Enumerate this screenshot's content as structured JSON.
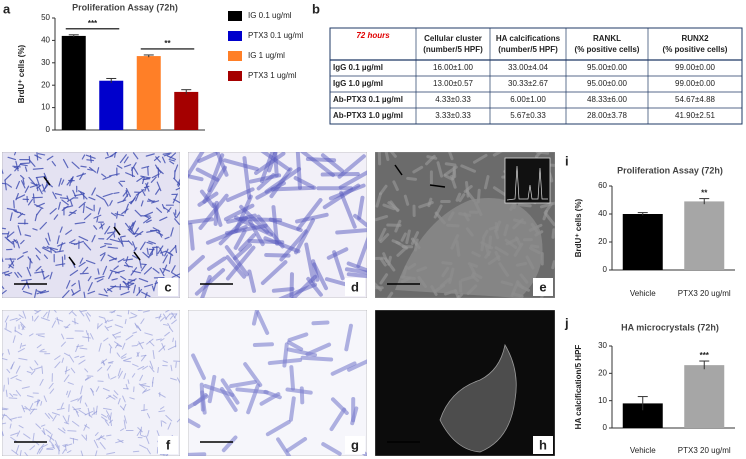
{
  "panels": {
    "a": "a",
    "b": "b",
    "c": "c",
    "d": "d",
    "e": "e",
    "f": "f",
    "g": "g",
    "h": "h",
    "i": "i",
    "j": "j"
  },
  "chart_data": [
    {
      "type": "bar",
      "title": "Proliferation Assay (72h)",
      "y_label": "BrdU⁺ cells (%)",
      "series": [
        {
          "name": "IG 0.1 ug/ml",
          "color": "#000000",
          "values": [
            42
          ],
          "errors": [
            0.5
          ]
        },
        {
          "name": "PTX3 0.1 ug/ml",
          "color": "#0000cc",
          "values": [
            22
          ],
          "errors": [
            1
          ]
        },
        {
          "name": "IG 1 ug/ml",
          "color": "#ff7f27",
          "values": [
            33
          ],
          "errors": [
            0.5
          ]
        },
        {
          "name": "PTX3 1 ug/ml",
          "color": "#a50000",
          "values": [
            17
          ],
          "errors": [
            1
          ]
        }
      ],
      "ylim": [
        0,
        50
      ],
      "yticks": [
        0,
        10,
        20,
        30,
        40,
        50
      ],
      "annotations": [
        "***",
        "**"
      ],
      "legend": "right"
    },
    {
      "type": "bar",
      "title": "Proliferation Assay (72h)",
      "y_label": "BrdU⁺ cells (%)",
      "categories": [
        "Vehicle",
        "PTX3 20 ug/ml"
      ],
      "values": [
        40,
        49
      ],
      "errors": [
        1,
        2
      ],
      "colors": [
        "#000000",
        "#a6a6a6"
      ],
      "ylim": [
        0,
        60
      ],
      "yticks": [
        0,
        20,
        40,
        60
      ],
      "annotations": [
        "**"
      ]
    },
    {
      "type": "bar",
      "title": "HA microcrystals (72h)",
      "y_label": "HA calcification/5 HPF",
      "categories": [
        "Vehicle",
        "PTX3 20 ug/ml"
      ],
      "values": [
        9,
        23
      ],
      "errors": [
        2.5,
        1.5
      ],
      "colors": [
        "#000000",
        "#a6a6a6"
      ],
      "ylim": [
        0,
        30
      ],
      "yticks": [
        0,
        10,
        20,
        30
      ],
      "annotations": [
        "***"
      ]
    }
  ],
  "table": {
    "header": [
      [
        "72 hours"
      ],
      [
        "Cellular cluster",
        "(number/5 HPF)"
      ],
      [
        "HA calcifications",
        "(number/5 HPF)"
      ],
      [
        "RANKL",
        "(% positive cells)"
      ],
      [
        "RUNX2",
        "(% positive cells)"
      ]
    ],
    "rows": [
      [
        "IgG 0.1 µg/ml",
        "16.00±1.00",
        "33.00±4.04",
        "95.00±0.00",
        "99.00±0.00"
      ],
      [
        "IgG 1.0 µg/ml",
        "13.00±0.57",
        "30.33±2.67",
        "95.00±0.00",
        "99.00±0.00"
      ],
      [
        "Ab-PTX3 0.1 µg/ml",
        "4.33±0.33",
        "6.00±1.00",
        "48.33±6.00",
        "54.67±4.88"
      ],
      [
        "Ab-PTX3 1.0 µg/ml",
        "3.33±0.33",
        "5.67±0.33",
        "28.00±3.78",
        "41.90±2.51"
      ]
    ]
  }
}
